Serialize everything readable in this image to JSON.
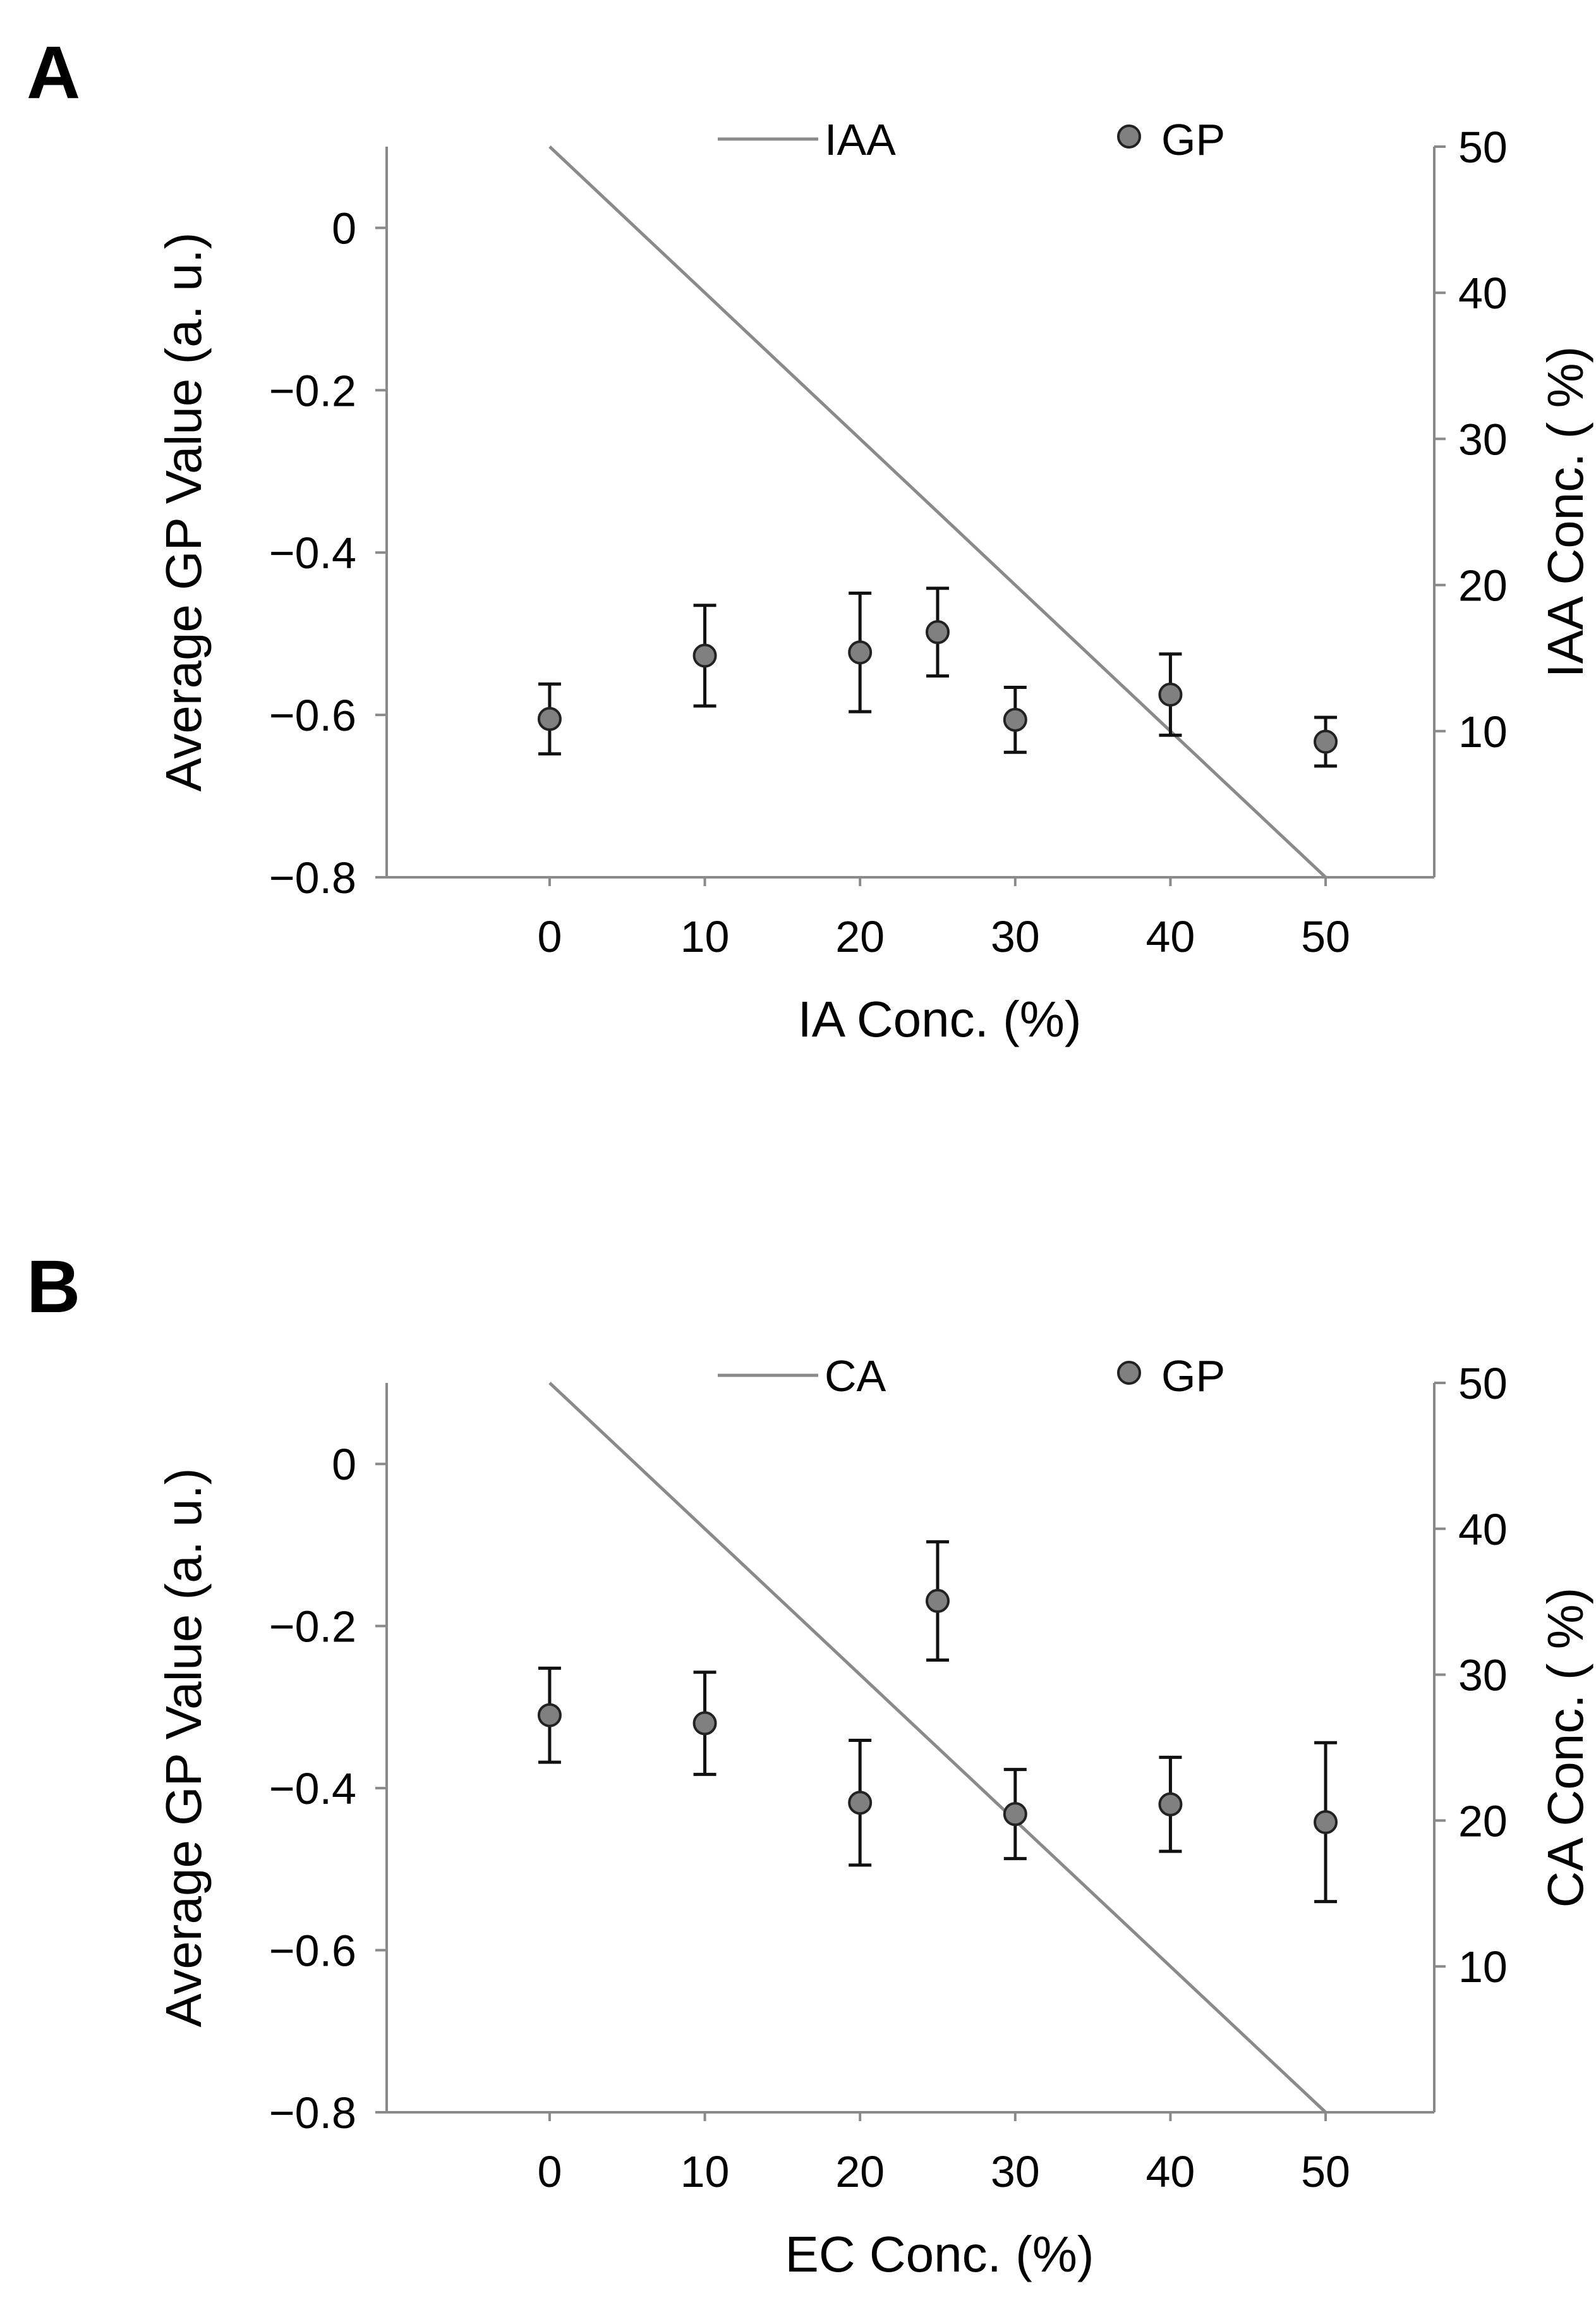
{
  "chart_data": [
    {
      "panel_label": "A",
      "type": "scatter",
      "x": [
        0,
        10,
        20,
        25,
        30,
        40,
        50
      ],
      "x_ticks": [
        "0",
        "10",
        "20",
        "30",
        "40",
        "50"
      ],
      "x_tick_values": [
        0,
        10,
        20,
        30,
        40,
        50
      ],
      "xlim": [
        -10.5,
        57
      ],
      "xlabel": "IA Conc. (%)",
      "ylabel": "Average GP Value (a. u.)",
      "ylim": [
        -0.8,
        0.1
      ],
      "y_ticks": [
        "0",
        "−0.2",
        "−0.4",
        "−0.6",
        "−0.8"
      ],
      "y_tick_values": [
        0,
        -0.2,
        -0.4,
        -0.6,
        -0.8
      ],
      "y2label": "IAA Conc. ( %)",
      "y2lim": [
        0,
        50
      ],
      "y2_ticks": [
        "10",
        "20",
        "30",
        "40",
        "50"
      ],
      "y2_tick_values": [
        10,
        20,
        30,
        40,
        50
      ],
      "series": [
        {
          "name": "GP",
          "kind": "points",
          "axis": "left",
          "values": [
            -0.605,
            -0.527,
            -0.523,
            -0.498,
            -0.606,
            -0.575,
            -0.633
          ],
          "errors": [
            0.043,
            0.062,
            0.073,
            0.054,
            0.04,
            0.05,
            0.03
          ]
        },
        {
          "name": "IAA",
          "kind": "line",
          "axis": "right",
          "x": [
            0,
            50
          ],
          "values": [
            50,
            0
          ]
        }
      ],
      "legend": {
        "line_label": "IAA",
        "marker_label": "GP",
        "position": "top"
      }
    },
    {
      "panel_label": "B",
      "type": "scatter",
      "x": [
        0,
        10,
        20,
        25,
        30,
        40,
        50
      ],
      "x_ticks": [
        "0",
        "10",
        "20",
        "30",
        "40",
        "50"
      ],
      "x_tick_values": [
        0,
        10,
        20,
        30,
        40,
        50
      ],
      "xlim": [
        -10.5,
        57
      ],
      "xlabel": "EC Conc. (%)",
      "ylabel": "Average GP Value (a. u.)",
      "ylim": [
        -0.8,
        0.1
      ],
      "y_ticks": [
        "0",
        "−0.2",
        "−0.4",
        "−0.6",
        "−0.8"
      ],
      "y_tick_values": [
        0,
        -0.2,
        -0.4,
        -0.6,
        -0.8
      ],
      "y2label": "CA Conc. ( %)",
      "y2lim": [
        0,
        50
      ],
      "y2_ticks": [
        "10",
        "20",
        "30",
        "40",
        "50"
      ],
      "y2_tick_values": [
        10,
        20,
        30,
        40,
        50
      ],
      "series": [
        {
          "name": "GP",
          "kind": "points",
          "axis": "left",
          "values": [
            -0.31,
            -0.32,
            -0.418,
            -0.169,
            -0.432,
            -0.42,
            -0.442
          ],
          "errors": [
            0.058,
            0.063,
            0.077,
            0.073,
            0.055,
            0.058,
            0.098
          ]
        },
        {
          "name": "CA",
          "kind": "line",
          "axis": "right",
          "x": [
            0,
            50
          ],
          "values": [
            50,
            0
          ]
        }
      ],
      "legend": {
        "line_label": "CA",
        "marker_label": "GP",
        "position": "top"
      }
    }
  ],
  "colors": {
    "line": "#8a8a8a",
    "axis": "#8a8a8a",
    "marker_fill": "#808080",
    "marker_stroke": "#222222",
    "error_bar": "#111111"
  }
}
